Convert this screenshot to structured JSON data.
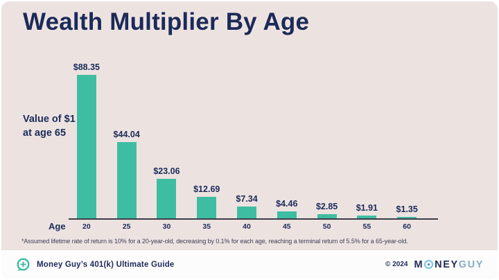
{
  "card": {
    "title": "Wealth Multiplier By Age",
    "background": "#ece3e1",
    "title_color": "#1c2a58"
  },
  "chart_data": {
    "type": "bar",
    "title": "Wealth Multiplier By Age",
    "xlabel": "Age",
    "ylabel": "Value of $1 at age 65",
    "ylabel_lines": [
      "Value of $1",
      "at age 65"
    ],
    "categories": [
      "20",
      "25",
      "30",
      "35",
      "40",
      "45",
      "50",
      "55",
      "60"
    ],
    "values": [
      88.35,
      44.04,
      23.06,
      12.69,
      7.34,
      4.46,
      2.85,
      1.91,
      1.35
    ],
    "value_labels": [
      "$88.35",
      "$44.04",
      "$23.06",
      "$12.69",
      "$7.34",
      "$4.46",
      "$2.85",
      "$1.91",
      "$1.35"
    ],
    "ylim": [
      0,
      90
    ],
    "grid": false,
    "legend": false,
    "bar_color": "#3fbda2",
    "footnote": "*Assumed lifetime rate of return is 10% for a 20-year-old, decreasing by 0.1% for each age, reaching a terminal return of 5.5% for a 65-year-old."
  },
  "footer": {
    "brand_icon": "chat-bubble-plus-icon",
    "left_text": "Money Guy’s 401(k) Ultimate Guide",
    "copyright": "© 2024",
    "logo": {
      "part_m": "M",
      "o_icon": "target-ring-icon",
      "part_ney": "NEY",
      "part_guy": "GUY"
    }
  },
  "colors": {
    "navy": "#1c2a58",
    "teal": "#3fbda2",
    "light_blue": "#76c5e5",
    "logo_guy_blue": "#8aa9c9",
    "card_background": "#ece3e1",
    "footer_background": "#fcfcfd",
    "axis_line": "#3d3d46"
  }
}
